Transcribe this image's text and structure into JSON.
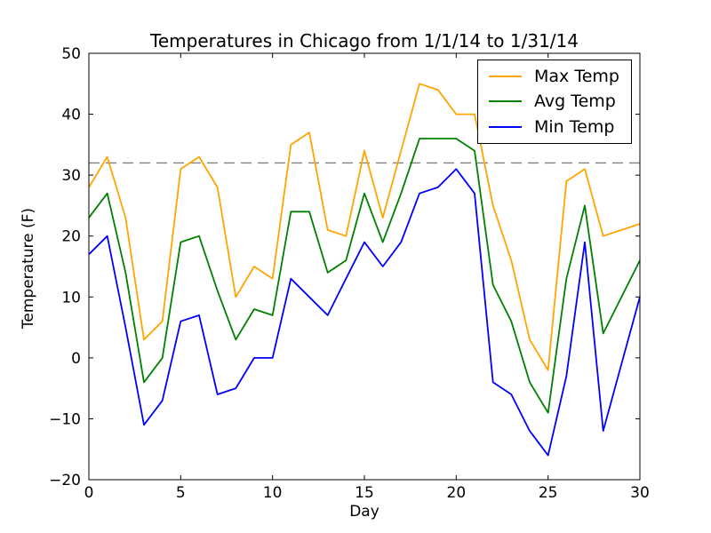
{
  "chart_data": {
    "type": "line",
    "title": "Temperatures in Chicago from 1/1/14 to 1/31/14",
    "xlabel": "Day",
    "ylabel": "Temperature (F)",
    "x": [
      0,
      1,
      2,
      3,
      4,
      5,
      6,
      7,
      8,
      9,
      10,
      11,
      12,
      13,
      14,
      15,
      16,
      17,
      18,
      19,
      20,
      21,
      22,
      23,
      24,
      25,
      26,
      27,
      28,
      29,
      30
    ],
    "series": [
      {
        "name": "Max Temp",
        "color": "#FFA500",
        "values": [
          28,
          33,
          23,
          3,
          6,
          31,
          33,
          28,
          10,
          15,
          13,
          35,
          37,
          21,
          20,
          34,
          23,
          34,
          45,
          44,
          40,
          40,
          25,
          16,
          3,
          -2,
          29,
          31,
          20,
          21,
          22
        ]
      },
      {
        "name": "Avg Temp",
        "color": "#008000",
        "values": [
          23,
          27,
          14,
          -4,
          0,
          19,
          20,
          11,
          3,
          8,
          7,
          24,
          24,
          14,
          16,
          27,
          19,
          27,
          36,
          36,
          36,
          34,
          12,
          6,
          -4,
          -9,
          13,
          25,
          4,
          10,
          16
        ]
      },
      {
        "name": "Min Temp",
        "color": "#0000FF",
        "values": [
          17,
          20,
          5,
          -11,
          -7,
          6,
          7,
          -6,
          -5,
          0,
          0,
          13,
          10,
          7,
          13,
          19,
          15,
          19,
          27,
          28,
          31,
          27,
          -4,
          -6,
          -12,
          -16,
          -3,
          19,
          -12,
          -1,
          10
        ]
      }
    ],
    "reference_line": {
      "value": 32,
      "style": "dashed",
      "color": "#808080"
    },
    "xlim": [
      0,
      30
    ],
    "ylim": [
      -20,
      50
    ],
    "xticks": [
      0,
      5,
      10,
      15,
      20,
      25,
      30
    ],
    "yticks": [
      -20,
      -10,
      0,
      10,
      20,
      30,
      40,
      50
    ],
    "legend_position": "upper right",
    "grid": false,
    "axis_color": "#000000",
    "background_color": "#ffffff"
  }
}
